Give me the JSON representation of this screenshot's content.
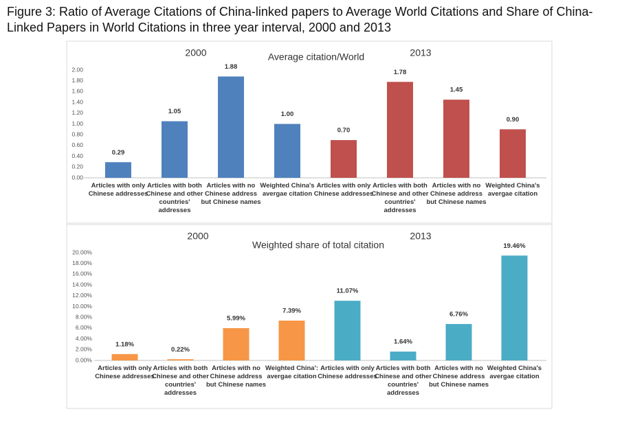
{
  "figure_title": "Figure 3: Ratio of Average Citations of China-linked papers to Average World Citations and Share of China-Linked Papers in World Citations in three year interval, 2000 and 2013",
  "chart_data": [
    {
      "type": "bar",
      "title": "Average citation/World",
      "group_labels": [
        "2000",
        "2013"
      ],
      "categories": [
        "Articles with only Chinese addresses",
        "Articles with both Chinese and other countries' addresses",
        "Articles with no Chinese address but Chinese names",
        "Weighted China's avergae citation",
        "Articles with only Chinese addresses",
        "Articles with both Chinese and other countries' addresses",
        "Articles with no Chinese address but Chinese names",
        "Weighted China's avergae citation"
      ],
      "values": [
        0.29,
        1.05,
        1.88,
        1.0,
        0.7,
        1.78,
        1.45,
        0.9
      ],
      "value_labels": [
        "0.29",
        "1.05",
        "1.88",
        "1.00",
        "0.70",
        "1.78",
        "1.45",
        "0.90"
      ],
      "colors": [
        "#4f81bd",
        "#4f81bd",
        "#4f81bd",
        "#4f81bd",
        "#c0504d",
        "#c0504d",
        "#c0504d",
        "#c0504d"
      ],
      "ylim": [
        0,
        2
      ],
      "yticks": [
        {
          "value": 0,
          "label": "0.00"
        },
        {
          "value": 0.2,
          "label": "0.20"
        },
        {
          "value": 0.4,
          "label": "0.40"
        },
        {
          "value": 0.6,
          "label": "0.60"
        },
        {
          "value": 0.8,
          "label": "0.80"
        },
        {
          "value": 1,
          "label": "1.00"
        },
        {
          "value": 1.2,
          "label": "1.20"
        },
        {
          "value": 1.4,
          "label": "1.40"
        },
        {
          "value": 1.6,
          "label": "1.60"
        },
        {
          "value": 1.8,
          "label": "1.80"
        },
        {
          "value": 2,
          "label": "2.00"
        }
      ],
      "grid": false
    },
    {
      "type": "bar",
      "title": "Weighted share of total citation",
      "group_labels": [
        "2000",
        "2013"
      ],
      "categories": [
        "Articles with only Chinese addresses",
        "Articles with both Chinese and other countries' addresses",
        "Articles with no Chinese address but Chinese names",
        "Weighted China': avergae citation",
        "Articles with only Chinese addresses",
        "Articles with both Chinese and other countries' addresses",
        "Articles with no Chinese address but Chinese names",
        "Weighted China's avergae citation"
      ],
      "values": [
        1.18,
        0.22,
        5.99,
        7.39,
        11.07,
        1.64,
        6.76,
        19.46
      ],
      "value_labels": [
        "1.18%",
        "0.22%",
        "5.99%",
        "7.39%",
        "11.07%",
        "1.64%",
        "6.76%",
        "19.46%"
      ],
      "colors": [
        "#f79646",
        "#f79646",
        "#f79646",
        "#f79646",
        "#4bacc6",
        "#4bacc6",
        "#4bacc6",
        "#4bacc6"
      ],
      "ylim": [
        0,
        20
      ],
      "yticks": [
        {
          "value": 0,
          "label": "0.00%"
        },
        {
          "value": 2,
          "label": "2.00%"
        },
        {
          "value": 4,
          "label": "4.00%"
        },
        {
          "value": 6,
          "label": "6.00%"
        },
        {
          "value": 8,
          "label": "8.00%"
        },
        {
          "value": 10,
          "label": "10.00%"
        },
        {
          "value": 12,
          "label": "12.00%"
        },
        {
          "value": 14,
          "label": "14.00%"
        },
        {
          "value": 16,
          "label": "16.00%"
        },
        {
          "value": 18,
          "label": "18.00%"
        },
        {
          "value": 20,
          "label": "20.00%"
        }
      ],
      "grid": false
    }
  ]
}
